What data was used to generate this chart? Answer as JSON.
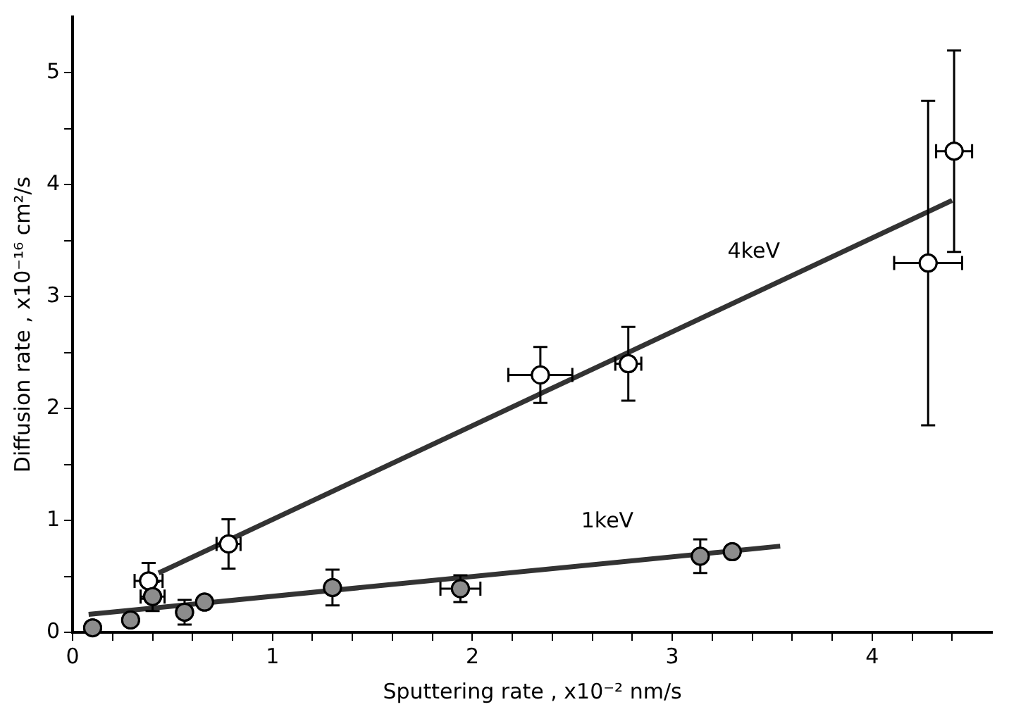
{
  "chart_data": {
    "type": "scatter",
    "xlabel": "Sputtering rate , x10⁻² nm/s",
    "ylabel": "Diffusion rate , x10⁻¹⁶ cm²/s",
    "xlim": [
      0,
      4.6
    ],
    "ylim": [
      0,
      5.5
    ],
    "xticks": [
      0,
      {
        "value": 0.2,
        "label": null
      },
      {
        "value": 0.4,
        "label": null
      },
      {
        "value": 0.6,
        "label": null
      },
      {
        "value": 0.8,
        "label": null
      },
      1,
      {
        "value": 1.2,
        "label": null
      },
      {
        "value": 1.4,
        "label": null
      },
      {
        "value": 1.6,
        "label": null
      },
      {
        "value": 1.8,
        "label": null
      },
      2,
      {
        "value": 2.2,
        "label": null
      },
      {
        "value": 2.4,
        "label": null
      },
      {
        "value": 2.6,
        "label": null
      },
      {
        "value": 2.8,
        "label": null
      },
      3,
      {
        "value": 3.2,
        "label": null
      },
      {
        "value": 3.4,
        "label": null
      },
      {
        "value": 3.6,
        "label": null
      },
      {
        "value": 3.8,
        "label": null
      },
      4,
      {
        "value": 4.2,
        "label": null
      },
      {
        "value": 4.4,
        "label": null
      }
    ],
    "yticks": [
      0,
      {
        "value": 0.5,
        "label": null
      },
      1,
      {
        "value": 1.5,
        "label": null
      },
      2,
      {
        "value": 2.5,
        "label": null
      },
      3,
      {
        "value": 3.5,
        "label": null
      },
      4,
      {
        "value": 4.5,
        "label": null
      },
      5
    ],
    "grid": false,
    "legend": false,
    "series": [
      {
        "marker": "circle",
        "color": "#ffffff",
        "x": [
          0.38,
          0.78,
          2.34,
          2.78,
          4.28,
          4.41
        ],
        "values": [
          0.46,
          0.79,
          2.3,
          2.4,
          3.3,
          4.3
        ],
        "errors": [
          0.16,
          0.22,
          0.25,
          0.33,
          1.45,
          0.9
        ],
        "xerrors": [
          0.07,
          0.06,
          0.16,
          0.065,
          0.17,
          0.09
        ]
      },
      {
        "type": "line",
        "name": "4keV",
        "marker": "none",
        "color": "#333333",
        "x": [
          0.43,
          4.4
        ],
        "values": [
          0.53,
          3.86
        ]
      },
      {
        "marker": "circle",
        "color": "#8c8c8c",
        "x": [
          0.1,
          0.29,
          0.4,
          0.56,
          0.66,
          1.3,
          1.94,
          3.14,
          3.3
        ],
        "values": [
          0.04,
          0.11,
          0.32,
          0.18,
          0.27,
          0.4,
          0.39,
          0.68,
          0.72
        ],
        "errors": [
          null,
          null,
          0.13,
          0.11,
          null,
          0.16,
          0.12,
          0.15,
          null
        ],
        "xerrors": [
          null,
          null,
          0.06,
          null,
          null,
          null,
          0.1,
          null,
          null
        ]
      },
      {
        "type": "line",
        "name": "1keV",
        "marker": "none",
        "color": "#333333",
        "x": [
          0.08,
          3.54
        ],
        "values": [
          0.16,
          0.77
        ]
      }
    ]
  }
}
